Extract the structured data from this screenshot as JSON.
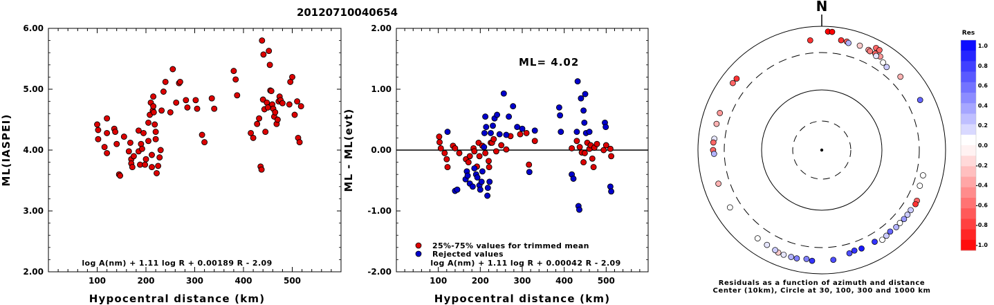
{
  "page_title": "20120710040654",
  "chart_data": [
    {
      "type": "scatter",
      "title": "",
      "xlabel": "Hypocentral distance (km)",
      "ylabel": "ML(IASPEI)",
      "xlim": [
        0,
        600
      ],
      "ylim": [
        2.0,
        6.0
      ],
      "xticks": [
        "100",
        "200",
        "300",
        "400",
        "500"
      ],
      "yticks": [
        "2.00",
        "3.00",
        "4.00",
        "5.00",
        "6.00"
      ],
      "formula": "log A(nm) + 1.11 log R + 0.00189 R - 2.09",
      "point_color": "#dd0000",
      "points": [
        [
          100,
          4.42
        ],
        [
          102,
          4.33
        ],
        [
          102,
          4.18
        ],
        [
          115,
          4.05
        ],
        [
          120,
          4.52
        ],
        [
          120,
          4.28
        ],
        [
          120,
          3.95
        ],
        [
          135,
          4.35
        ],
        [
          137,
          4.3
        ],
        [
          140,
          4.1
        ],
        [
          145,
          3.6
        ],
        [
          147,
          3.58
        ],
        [
          155,
          4.22
        ],
        [
          165,
          3.98
        ],
        [
          168,
          4.12
        ],
        [
          170,
          3.85
        ],
        [
          170,
          3.78
        ],
        [
          172,
          3.72
        ],
        [
          175,
          3.9
        ],
        [
          185,
          3.98
        ],
        [
          185,
          4.32
        ],
        [
          188,
          3.76
        ],
        [
          190,
          4.1
        ],
        [
          192,
          4.02
        ],
        [
          195,
          4.28
        ],
        [
          198,
          3.76
        ],
        [
          200,
          3.85
        ],
        [
          205,
          4.15
        ],
        [
          205,
          4.45
        ],
        [
          208,
          4.58
        ],
        [
          210,
          4.78
        ],
        [
          212,
          3.92
        ],
        [
          212,
          3.72
        ],
        [
          214,
          4.65
        ],
        [
          215,
          4.72
        ],
        [
          215,
          4.88
        ],
        [
          216,
          4.62
        ],
        [
          218,
          4.42
        ],
        [
          220,
          4.3
        ],
        [
          220,
          4.18
        ],
        [
          222,
          3.62
        ],
        [
          225,
          3.74
        ],
        [
          228,
          3.88
        ],
        [
          230,
          4.0
        ],
        [
          232,
          4.65
        ],
        [
          236,
          4.96
        ],
        [
          240,
          5.12
        ],
        [
          250,
          4.62
        ],
        [
          255,
          5.33
        ],
        [
          262,
          4.78
        ],
        [
          268,
          5.1
        ],
        [
          270,
          5.12
        ],
        [
          282,
          4.82
        ],
        [
          285,
          4.7
        ],
        [
          302,
          4.82
        ],
        [
          305,
          4.68
        ],
        [
          315,
          4.25
        ],
        [
          320,
          4.13
        ],
        [
          335,
          4.85
        ],
        [
          340,
          4.68
        ],
        [
          380,
          5.3
        ],
        [
          384,
          5.16
        ],
        [
          387,
          4.9
        ],
        [
          415,
          4.28
        ],
        [
          420,
          4.2
        ],
        [
          428,
          4.43
        ],
        [
          432,
          4.52
        ],
        [
          435,
          3.73
        ],
        [
          437,
          3.68
        ],
        [
          438,
          5.8
        ],
        [
          440,
          4.83
        ],
        [
          441,
          5.57
        ],
        [
          443,
          4.67
        ],
        [
          445,
          4.3
        ],
        [
          448,
          4.78
        ],
        [
          450,
          4.7
        ],
        [
          452,
          5.63
        ],
        [
          454,
          5.4
        ],
        [
          455,
          4.98
        ],
        [
          457,
          4.97
        ],
        [
          459,
          4.75
        ],
        [
          461,
          4.68
        ],
        [
          463,
          4.55
        ],
        [
          465,
          4.62
        ],
        [
          468,
          4.43
        ],
        [
          470,
          4.5
        ],
        [
          472,
          4.8
        ],
        [
          474,
          4.88
        ],
        [
          476,
          4.82
        ],
        [
          480,
          4.77
        ],
        [
          494,
          4.75
        ],
        [
          496,
          5.12
        ],
        [
          500,
          5.2
        ],
        [
          505,
          4.58
        ],
        [
          510,
          4.8
        ],
        [
          512,
          4.2
        ],
        [
          515,
          4.13
        ],
        [
          518,
          4.72
        ]
      ]
    },
    {
      "type": "scatter",
      "title": "",
      "xlabel": "Hypocentral distance (km)",
      "ylabel": "ML - ML(evt)",
      "xlim": [
        0,
        600
      ],
      "ylim": [
        -2.0,
        2.0
      ],
      "xticks": [
        "100",
        "200",
        "300",
        "400",
        "500"
      ],
      "yticks": [
        "-2.00",
        "-1.00",
        "0.00",
        "1.00",
        "2.00"
      ],
      "annotation": "ML= 4.02",
      "formula": "log A(nm) + 1.11 log R + 0.00042 R - 2.09",
      "legend": [
        {
          "label": "25%-75% values for trimmed mean",
          "color": "#dd0000"
        },
        {
          "label": "Rejected values",
          "color": "#0000cc"
        }
      ],
      "series": [
        {
          "name": "25%-75% values for trimmed mean",
          "color": "#dd0000",
          "points": [
            [
              102,
              0.22
            ],
            [
              103,
              0.13
            ],
            [
              106,
              0.03
            ],
            [
              115,
              -0.05
            ],
            [
              120,
              -0.15
            ],
            [
              122,
              -0.28
            ],
            [
              135,
              0.07
            ],
            [
              140,
              0.03
            ],
            [
              150,
              -0.05
            ],
            [
              166,
              -0.15
            ],
            [
              172,
              -0.2
            ],
            [
              175,
              -0.1
            ],
            [
              184,
              0.03
            ],
            [
              186,
              -0.02
            ],
            [
              192,
              -0.27
            ],
            [
              196,
              0.12
            ],
            [
              198,
              -0.1
            ],
            [
              205,
              0.07
            ],
            [
              212,
              -0.05
            ],
            [
              220,
              -0.18
            ],
            [
              221,
              -0.28
            ],
            [
              225,
              0.12
            ],
            [
              228,
              0.12
            ],
            [
              232,
              0.18
            ],
            [
              238,
              -0.02
            ],
            [
              250,
              0.08
            ],
            [
              262,
              0.01
            ],
            [
              272,
              0.23
            ],
            [
              295,
              0.26
            ],
            [
              310,
              0.28
            ],
            [
              316,
              -0.24
            ],
            [
              330,
              0.15
            ],
            [
              418,
              0.03
            ],
            [
              430,
              0.15
            ],
            [
              437,
              0.05
            ],
            [
              442,
              -0.04
            ],
            [
              446,
              -0.2
            ],
            [
              449,
              -0.05
            ],
            [
              455,
              0.12
            ],
            [
              460,
              0.02
            ],
            [
              463,
              0.08
            ],
            [
              467,
              -0.14
            ],
            [
              470,
              -0.28
            ],
            [
              472,
              0.04
            ],
            [
              478,
              0.1
            ],
            [
              494,
              0.0
            ],
            [
              500,
              0.08
            ],
            [
              510,
              0.02
            ],
            [
              512,
              -0.1
            ]
          ]
        },
        {
          "name": "Rejected values",
          "color": "#0000cc",
          "points": [
            [
              122,
              0.3
            ],
            [
              140,
              -0.67
            ],
            [
              145,
              -0.65
            ],
            [
              165,
              -0.48
            ],
            [
              168,
              -0.35
            ],
            [
              170,
              -0.42
            ],
            [
              175,
              -0.55
            ],
            [
              182,
              -0.6
            ],
            [
              186,
              -0.3
            ],
            [
              190,
              -0.4
            ],
            [
              193,
              -0.45
            ],
            [
              198,
              -0.58
            ],
            [
              200,
              -0.65
            ],
            [
              203,
              -0.52
            ],
            [
              205,
              -0.35
            ],
            [
              209,
              0.05
            ],
            [
              210,
              0.28
            ],
            [
              212,
              0.55
            ],
            [
              214,
              0.38
            ],
            [
              217,
              -0.75
            ],
            [
              218,
              -0.62
            ],
            [
              222,
              -0.52
            ],
            [
              225,
              0.28
            ],
            [
              230,
              0.4
            ],
            [
              234,
              0.52
            ],
            [
              240,
              0.58
            ],
            [
              246,
              0.26
            ],
            [
              256,
              0.93
            ],
            [
              262,
              0.25
            ],
            [
              268,
              0.55
            ],
            [
              278,
              0.72
            ],
            [
              288,
              0.38
            ],
            [
              300,
              0.35
            ],
            [
              317,
              -0.36
            ],
            [
              330,
              0.32
            ],
            [
              388,
              0.7
            ],
            [
              390,
              0.57
            ],
            [
              392,
              0.3
            ],
            [
              418,
              -0.4
            ],
            [
              422,
              -0.47
            ],
            [
              430,
              0.3
            ],
            [
              432,
              1.13
            ],
            [
              434,
              -0.92
            ],
            [
              436,
              -0.98
            ],
            [
              440,
              0.85
            ],
            [
              446,
              0.65
            ],
            [
              448,
              0.45
            ],
            [
              450,
              0.92
            ],
            [
              452,
              0.28
            ],
            [
              460,
              0.3
            ],
            [
              497,
              0.45
            ],
            [
              499,
              0.38
            ],
            [
              510,
              -0.6
            ],
            [
              512,
              -0.68
            ]
          ]
        }
      ]
    },
    {
      "type": "polar-scatter",
      "title": "",
      "north_label": "N",
      "colorbar_title": "Res",
      "colorbar_ticks": [
        "1.0",
        "0.8",
        "0.6",
        "0.4",
        "0.2",
        "0.0",
        "-0.2",
        "-0.4",
        "-0.6",
        "-0.8",
        "-1.0"
      ],
      "caption_line1": "Residuals as a function of azimuth and distance",
      "caption_line2": "Center (10km), Circle at 30, 100, 300 and 1000 km",
      "ring_distances_km": [
        30,
        100,
        300,
        1000
      ],
      "points": [
        {
          "az": 3,
          "dist": 790,
          "res": -1.0
        },
        {
          "az": 5,
          "dist": 790,
          "res": -1.0
        },
        {
          "az": 28,
          "dist": 690,
          "res": -0.6
        },
        {
          "az": 30,
          "dist": 680,
          "res": -0.6
        },
        {
          "az": 10,
          "dist": 570,
          "res": -0.8
        },
        {
          "az": 13,
          "dist": 565,
          "res": -0.6
        },
        {
          "az": 14,
          "dist": 540,
          "res": 0.3
        },
        {
          "az": 20,
          "dist": 560,
          "res": -0.2
        },
        {
          "az": 25,
          "dist": 545,
          "res": -0.4
        },
        {
          "az": 26,
          "dist": 530,
          "res": -0.5
        },
        {
          "az": 29,
          "dist": 540,
          "res": -0.6
        },
        {
          "az": 32,
          "dist": 540,
          "res": -0.4
        },
        {
          "az": 30,
          "dist": 500,
          "res": 0.1
        },
        {
          "az": 35,
          "dist": 460,
          "res": 0.0
        },
        {
          "az": 38,
          "dist": 430,
          "res": 0.2
        },
        {
          "az": 47,
          "dist": 475,
          "res": -0.3
        },
        {
          "az": 63,
          "dist": 540,
          "res": 0.6
        },
        {
          "az": 354,
          "dist": 540,
          "res": -0.8
        },
        {
          "az": 310,
          "dist": 560,
          "res": -0.8
        },
        {
          "az": 307,
          "dist": 565,
          "res": -0.6
        },
        {
          "az": 290,
          "dist": 495,
          "res": -0.4
        },
        {
          "az": 284,
          "dist": 495,
          "res": -0.3
        },
        {
          "az": 276,
          "dist": 485,
          "res": 0.1
        },
        {
          "az": 274,
          "dist": 500,
          "res": -0.6
        },
        {
          "az": 270,
          "dist": 500,
          "res": -0.6
        },
        {
          "az": 268,
          "dist": 480,
          "res": 0.3
        },
        {
          "az": 252,
          "dist": 500,
          "res": -0.3
        },
        {
          "az": 238,
          "dist": 490,
          "res": 0.0
        },
        {
          "az": 104,
          "dist": 410,
          "res": 0.0
        },
        {
          "az": 110,
          "dist": 410,
          "res": 0.0
        },
        {
          "az": 118,
          "dist": 480,
          "res": -0.6
        },
        {
          "az": 120,
          "dist": 490,
          "res": -0.8
        },
        {
          "az": 124,
          "dist": 470,
          "res": 0.2
        },
        {
          "az": 127,
          "dist": 470,
          "res": 0.2
        },
        {
          "az": 130,
          "dist": 470,
          "res": 0.4
        },
        {
          "az": 133,
          "dist": 460,
          "res": 0.0
        },
        {
          "az": 136,
          "dist": 465,
          "res": 0.3
        },
        {
          "az": 140,
          "dist": 450,
          "res": 0.6
        },
        {
          "az": 143,
          "dist": 470,
          "res": 0.2
        },
        {
          "az": 146,
          "dist": 490,
          "res": 0.0
        },
        {
          "az": 150,
          "dist": 440,
          "res": 0.8
        },
        {
          "az": 158,
          "dist": 445,
          "res": 0.9
        },
        {
          "az": 162,
          "dist": 435,
          "res": 0.8
        },
        {
          "az": 165,
          "dist": 460,
          "res": 0.7
        },
        {
          "az": 174,
          "dist": 540,
          "res": 0.7
        },
        {
          "az": 185,
          "dist": 560,
          "res": 0.8
        },
        {
          "az": 188,
          "dist": 530,
          "res": 0.5
        },
        {
          "az": 193,
          "dist": 560,
          "res": 0.5
        },
        {
          "az": 196,
          "dist": 560,
          "res": 0.3
        },
        {
          "az": 200,
          "dist": 565,
          "res": 0.1
        },
        {
          "az": 203,
          "dist": 565,
          "res": -0.2
        },
        {
          "az": 205,
          "dist": 540,
          "res": 0.2
        },
        {
          "az": 210,
          "dist": 520,
          "res": 0.1
        },
        {
          "az": 216,
          "dist": 510,
          "res": 0.0
        }
      ]
    }
  ]
}
